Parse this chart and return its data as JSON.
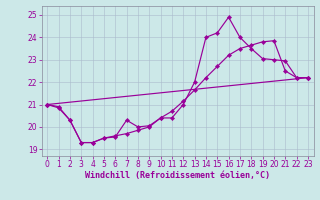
{
  "xlabel": "Windchill (Refroidissement éolien,°C)",
  "bg_color": "#cce8e8",
  "line_color": "#990099",
  "grid_color": "#aabbcc",
  "xlim": [
    -0.5,
    23.5
  ],
  "ylim": [
    18.7,
    25.4
  ],
  "yticks": [
    19,
    20,
    21,
    22,
    23,
    24,
    25
  ],
  "xticks": [
    0,
    1,
    2,
    3,
    4,
    5,
    6,
    7,
    8,
    9,
    10,
    11,
    12,
    13,
    14,
    15,
    16,
    17,
    18,
    19,
    20,
    21,
    22,
    23
  ],
  "series1_x": [
    0,
    1,
    2,
    3,
    4,
    5,
    6,
    7,
    8,
    9,
    10,
    11,
    12,
    13,
    14,
    15,
    16,
    17,
    18,
    19,
    20,
    21,
    22,
    23
  ],
  "series1_y": [
    21.0,
    20.9,
    20.3,
    19.3,
    19.3,
    19.5,
    19.55,
    20.3,
    20.0,
    20.05,
    20.4,
    20.4,
    21.0,
    22.0,
    24.0,
    24.2,
    24.9,
    24.0,
    23.5,
    23.05,
    23.0,
    22.95,
    22.2,
    22.2
  ],
  "series2_x": [
    0,
    1,
    2,
    3,
    4,
    5,
    6,
    7,
    8,
    9,
    10,
    11,
    12,
    13,
    14,
    15,
    16,
    17,
    18,
    19,
    20,
    21,
    22,
    23
  ],
  "series2_y": [
    21.0,
    20.85,
    20.3,
    19.3,
    19.3,
    19.5,
    19.6,
    19.7,
    19.85,
    20.0,
    20.4,
    20.7,
    21.15,
    21.65,
    22.2,
    22.7,
    23.2,
    23.5,
    23.65,
    23.8,
    23.85,
    22.5,
    22.2,
    22.2
  ],
  "series3_x": [
    0,
    23
  ],
  "series3_y": [
    21.0,
    22.2
  ],
  "tick_fontsize": 5.5,
  "xlabel_fontsize": 6.0,
  "line_width": 0.85,
  "marker_size": 2.2
}
